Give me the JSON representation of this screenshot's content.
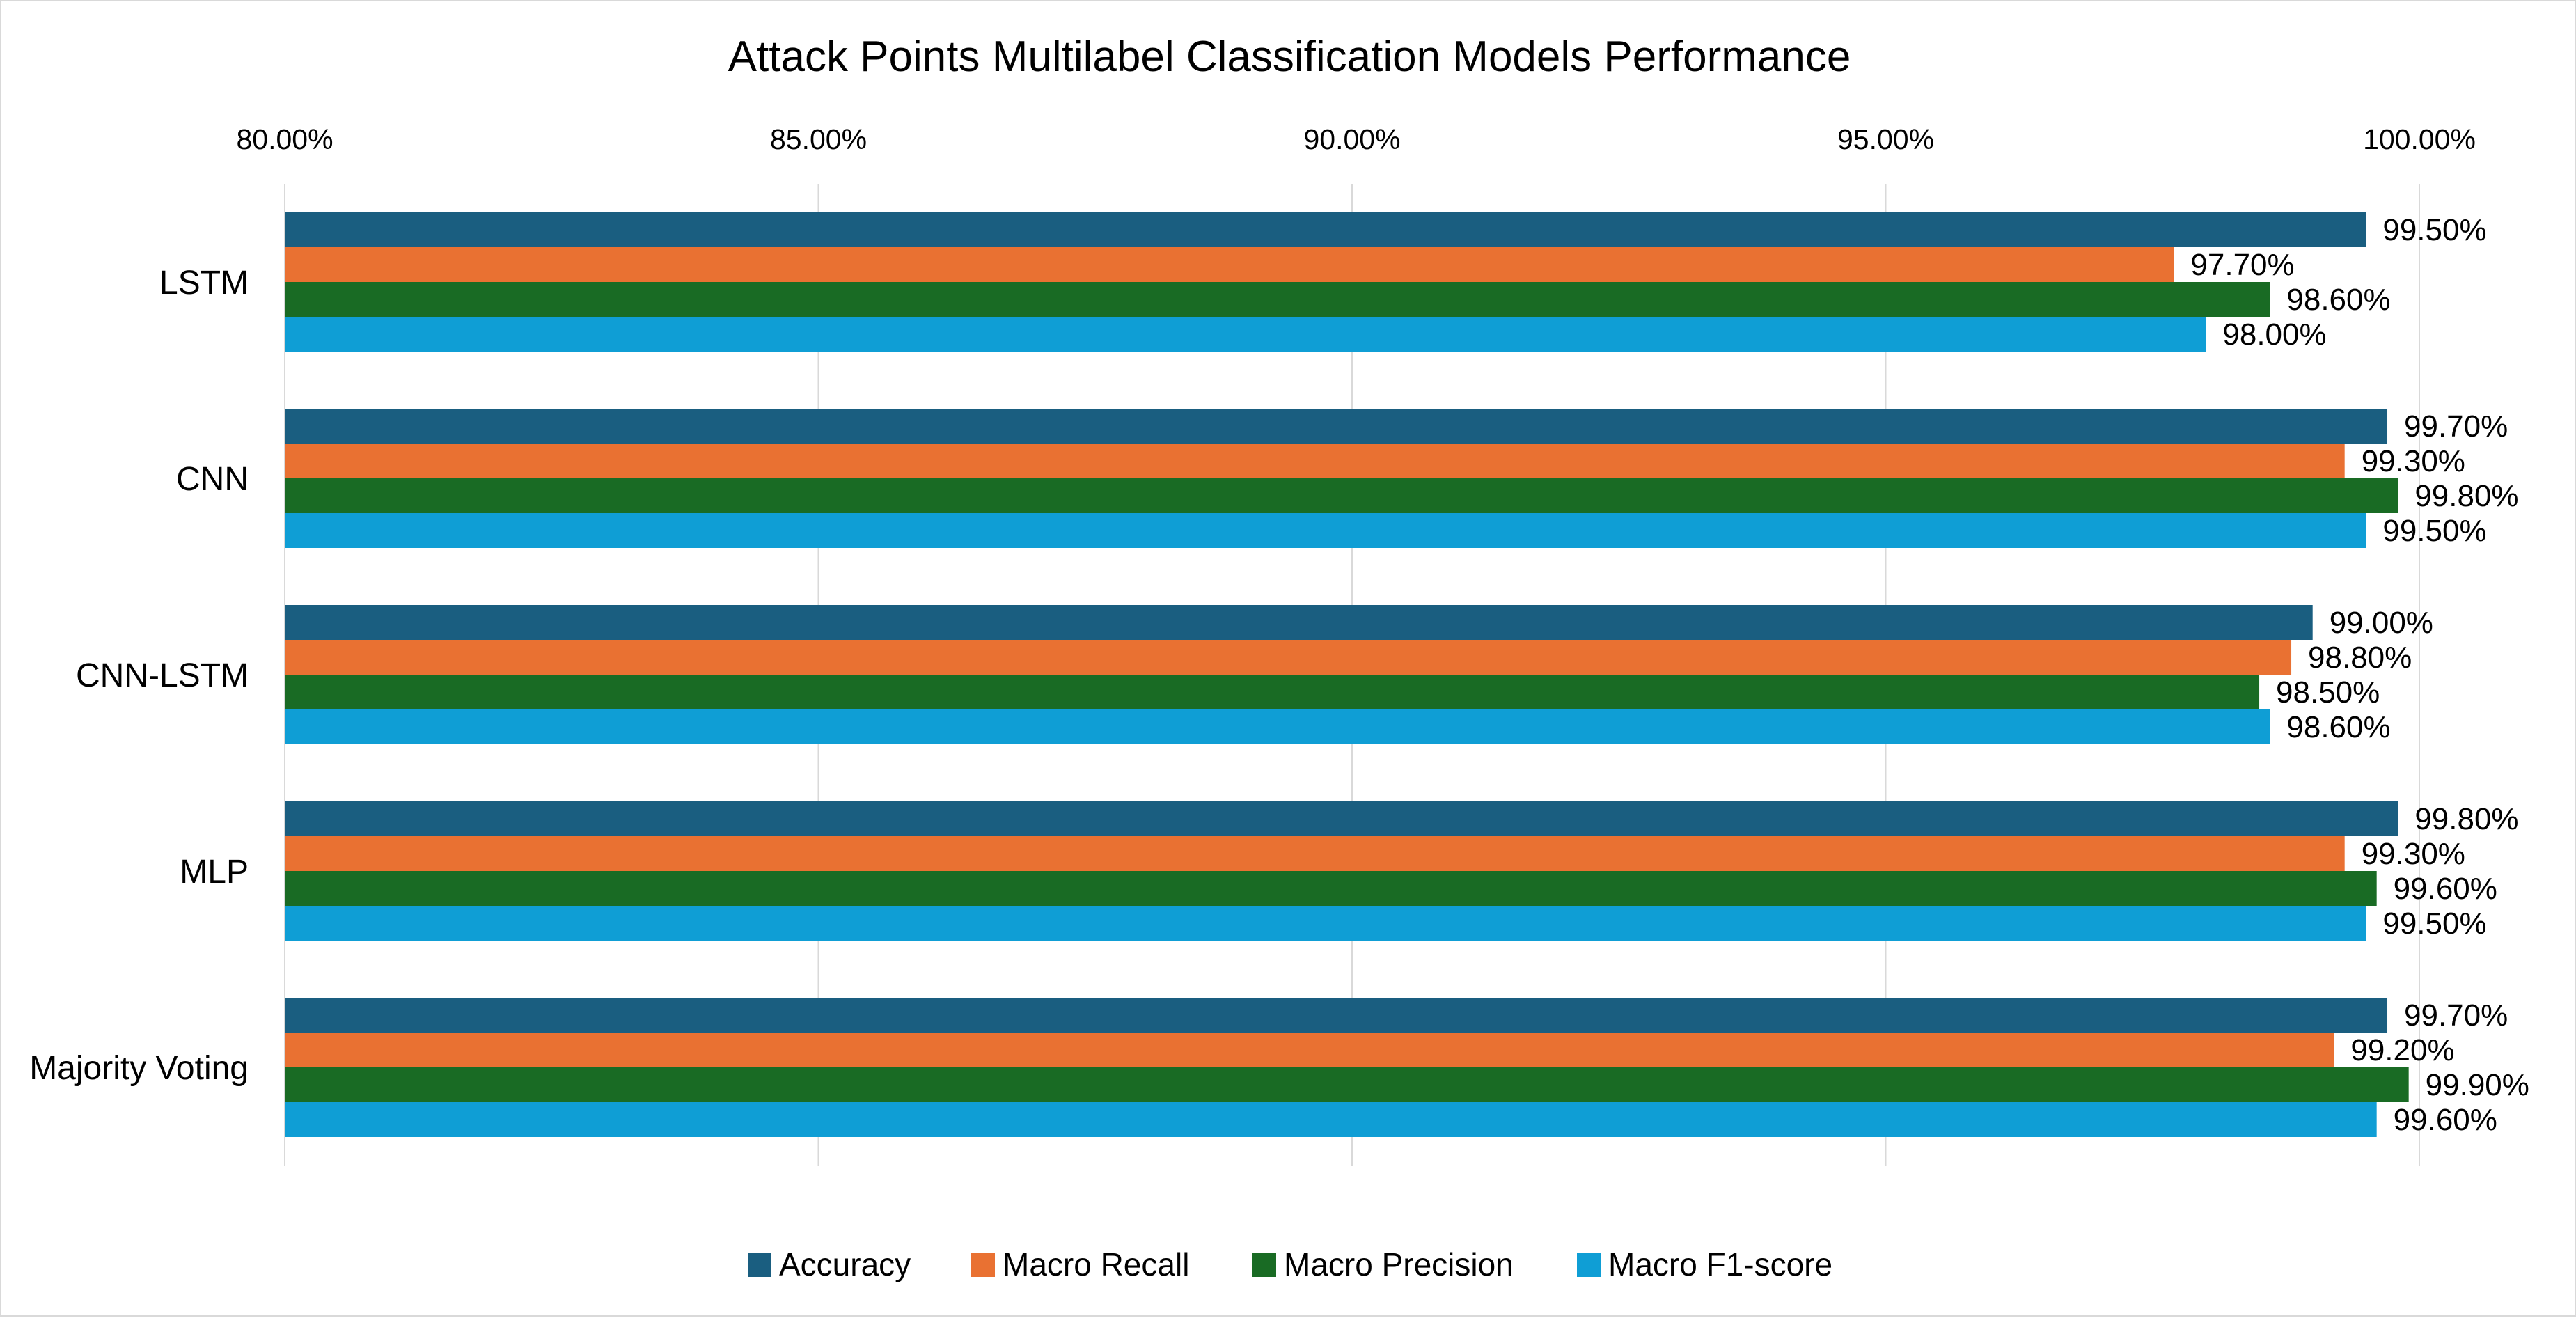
{
  "chart_data": {
    "type": "bar",
    "orientation": "horizontal",
    "title": "Attack Points Multilabel Classification Models Performance",
    "categories": [
      "LSTM",
      "CNN",
      "CNN-LSTM",
      "MLP",
      "Majority Voting"
    ],
    "series": [
      {
        "name": "Accuracy",
        "color": "#1a5e80",
        "values": [
          99.5,
          99.7,
          99.0,
          99.8,
          99.7
        ]
      },
      {
        "name": "Macro Recall",
        "color": "#e97132",
        "values": [
          97.7,
          99.3,
          98.8,
          99.3,
          99.2
        ]
      },
      {
        "name": "Macro Precision",
        "color": "#196b24",
        "values": [
          98.6,
          99.8,
          98.5,
          99.6,
          99.9
        ]
      },
      {
        "name": "Macro F1-score",
        "color": "#0f9ed5",
        "values": [
          98.0,
          99.5,
          98.6,
          99.5,
          99.6
        ]
      }
    ],
    "xlim": [
      80,
      100
    ],
    "x_ticks": [
      "80.00%",
      "85.00%",
      "90.00%",
      "95.00%",
      "100.00%"
    ],
    "x_axis_position": "top",
    "grid": true,
    "legend_position": "bottom",
    "value_format": "percent-2dp"
  }
}
